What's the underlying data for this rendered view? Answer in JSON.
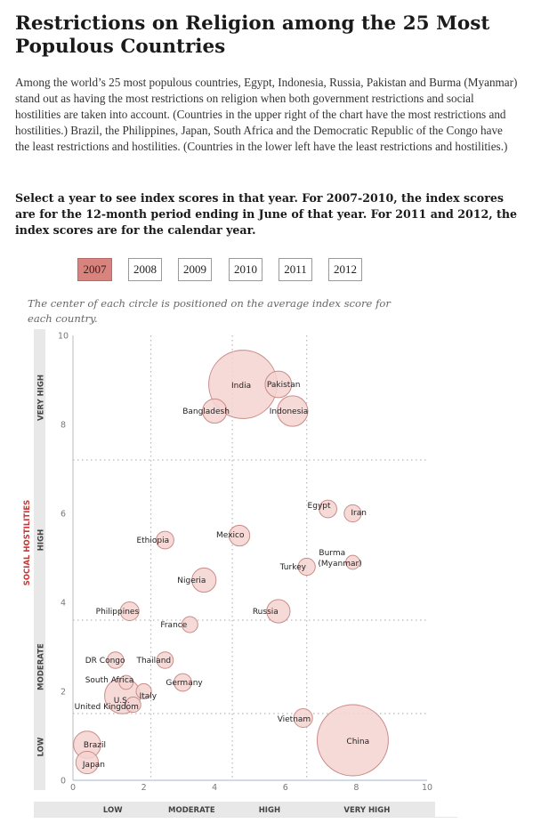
{
  "title": "Restrictions on Religion among the 25 Most Populous Countries",
  "intro": "Among the world’s 25 most populous countries, Egypt, Indonesia, Russia, Pakistan and Burma (Myanmar) stand out as having the most restrictions on religion when both government restrictions and social hostilities are taken into account. (Countries in the upper right of the chart have the most restrictions and hostilities.) Brazil, the Philippines, Japan, South Africa and the Democratic Republic of the Congo have the least restrictions and hostilities. (Countries in the lower left have the least restrictions and hostilities.)",
  "instruction": "Select a year to see index scores in that year. For 2007-2010, the index scores are for the 12-month period ending in June of that year. For 2011 and 2012, the index scores are for the calendar year.",
  "years": [
    "2007",
    "2008",
    "2009",
    "2010",
    "2011",
    "2012"
  ],
  "selected_year": "2007",
  "note": "The center of each circle is positioned on the average index score for each country.",
  "colors": {
    "accent": "#d9837e",
    "bubble_fill": "#f4d3d1",
    "bubble_stroke": "#c98c88",
    "axis_title": "#cc3333",
    "band": "#e8e8e8"
  },
  "chart_data": {
    "type": "scatter",
    "xlim": [
      0,
      10
    ],
    "ylim": [
      0,
      10
    ],
    "xticks": [
      "0",
      "2",
      "4",
      "6",
      "8",
      "10"
    ],
    "yticks": [
      "0",
      "2",
      "4",
      "6",
      "8",
      "10"
    ],
    "x_categories": [
      "LOW",
      "MODERATE",
      "HIGH",
      "VERY HIGH"
    ],
    "y_categories": [
      "LOW",
      "MODERATE",
      "HIGH",
      "VERY HIGH"
    ],
    "y_title": "SOCIAL HOSTILITIES",
    "x_thresholds": [
      2.2,
      4.5,
      6.6
    ],
    "y_thresholds": [
      1.5,
      3.6,
      7.2
    ],
    "points": [
      {
        "name": "India",
        "x": 4.8,
        "y": 8.9,
        "size": 1.2
      },
      {
        "name": "Pakistan",
        "x": 5.8,
        "y": 8.9,
        "size": 0.18
      },
      {
        "name": "Bangladesh",
        "x": 4.0,
        "y": 8.3,
        "size": 0.15
      },
      {
        "name": "Indonesia",
        "x": 6.2,
        "y": 8.3,
        "size": 0.24
      },
      {
        "name": "Egypt",
        "x": 7.2,
        "y": 6.1,
        "size": 0.08
      },
      {
        "name": "Iran",
        "x": 7.9,
        "y": 6.0,
        "size": 0.075
      },
      {
        "name": "Mexico",
        "x": 4.7,
        "y": 5.5,
        "size": 0.11
      },
      {
        "name": "Ethiopia",
        "x": 2.6,
        "y": 5.4,
        "size": 0.08
      },
      {
        "name": "Burma (Myanmar)",
        "x": 7.9,
        "y": 4.9,
        "size": 0.05
      },
      {
        "name": "Turkey",
        "x": 6.6,
        "y": 4.8,
        "size": 0.075
      },
      {
        "name": "Nigeria",
        "x": 3.7,
        "y": 4.5,
        "size": 0.15
      },
      {
        "name": "Philippines",
        "x": 1.6,
        "y": 3.8,
        "size": 0.09
      },
      {
        "name": "Russia",
        "x": 5.8,
        "y": 3.8,
        "size": 0.14
      },
      {
        "name": "France",
        "x": 3.3,
        "y": 3.5,
        "size": 0.065
      },
      {
        "name": "DR Congo",
        "x": 1.2,
        "y": 2.7,
        "size": 0.07
      },
      {
        "name": "Thailand",
        "x": 2.6,
        "y": 2.7,
        "size": 0.07
      },
      {
        "name": "South Africa",
        "x": 1.5,
        "y": 2.2,
        "size": 0.05
      },
      {
        "name": "Germany",
        "x": 3.1,
        "y": 2.2,
        "size": 0.08
      },
      {
        "name": "U.S.",
        "x": 1.4,
        "y": 1.9,
        "size": 0.33
      },
      {
        "name": "Italy",
        "x": 2.0,
        "y": 2.0,
        "size": 0.06
      },
      {
        "name": "United Kingdom",
        "x": 1.7,
        "y": 1.7,
        "size": 0.06
      },
      {
        "name": "Vietnam",
        "x": 6.5,
        "y": 1.4,
        "size": 0.09
      },
      {
        "name": "China",
        "x": 7.9,
        "y": 0.9,
        "size": 1.3
      },
      {
        "name": "Brazil",
        "x": 0.4,
        "y": 0.8,
        "size": 0.19
      },
      {
        "name": "Japan",
        "x": 0.4,
        "y": 0.4,
        "size": 0.13
      }
    ]
  }
}
